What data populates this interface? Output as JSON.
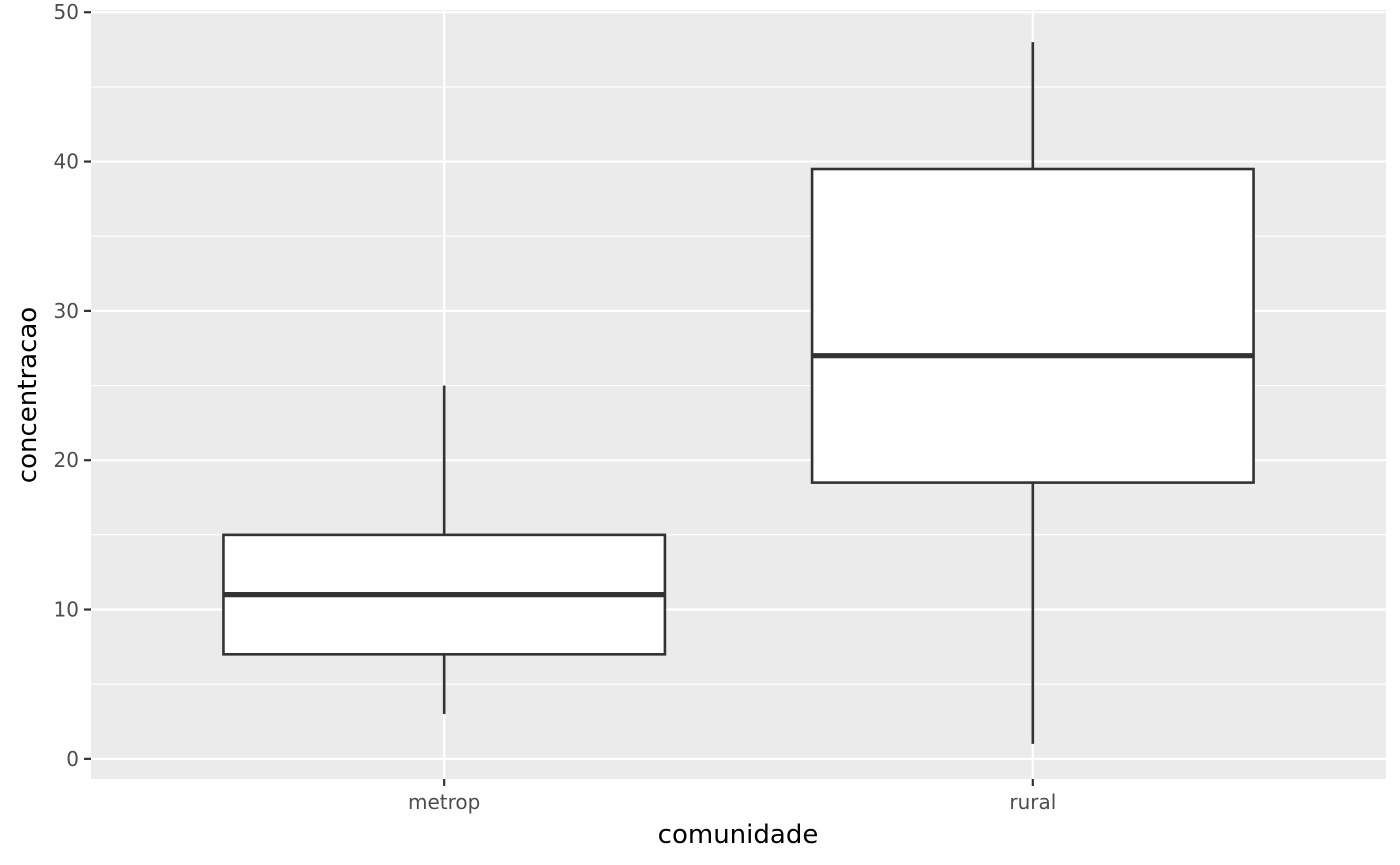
{
  "chart_data": {
    "type": "boxplot",
    "title": "",
    "xlabel": "comunidade",
    "ylabel": "concentracao",
    "categories": [
      "metrop",
      "rural"
    ],
    "boxes": [
      {
        "category": "metrop",
        "whisker_low": 3,
        "q1": 7,
        "median": 11,
        "q3": 15,
        "whisker_high": 25
      },
      {
        "category": "rural",
        "whisker_low": 1,
        "q1": 18.5,
        "median": 27,
        "q3": 39.5,
        "whisker_high": 48
      }
    ],
    "ylim": [
      -1.35,
      50.15
    ],
    "yticks": [
      0,
      10,
      20,
      30,
      40,
      50
    ],
    "grid": true,
    "colors": {
      "panel": "#ebebeb",
      "grid": "#ffffff",
      "box_fill": "#ffffff",
      "box_stroke": "#333333",
      "tick_text": "#4d4d4d"
    }
  }
}
